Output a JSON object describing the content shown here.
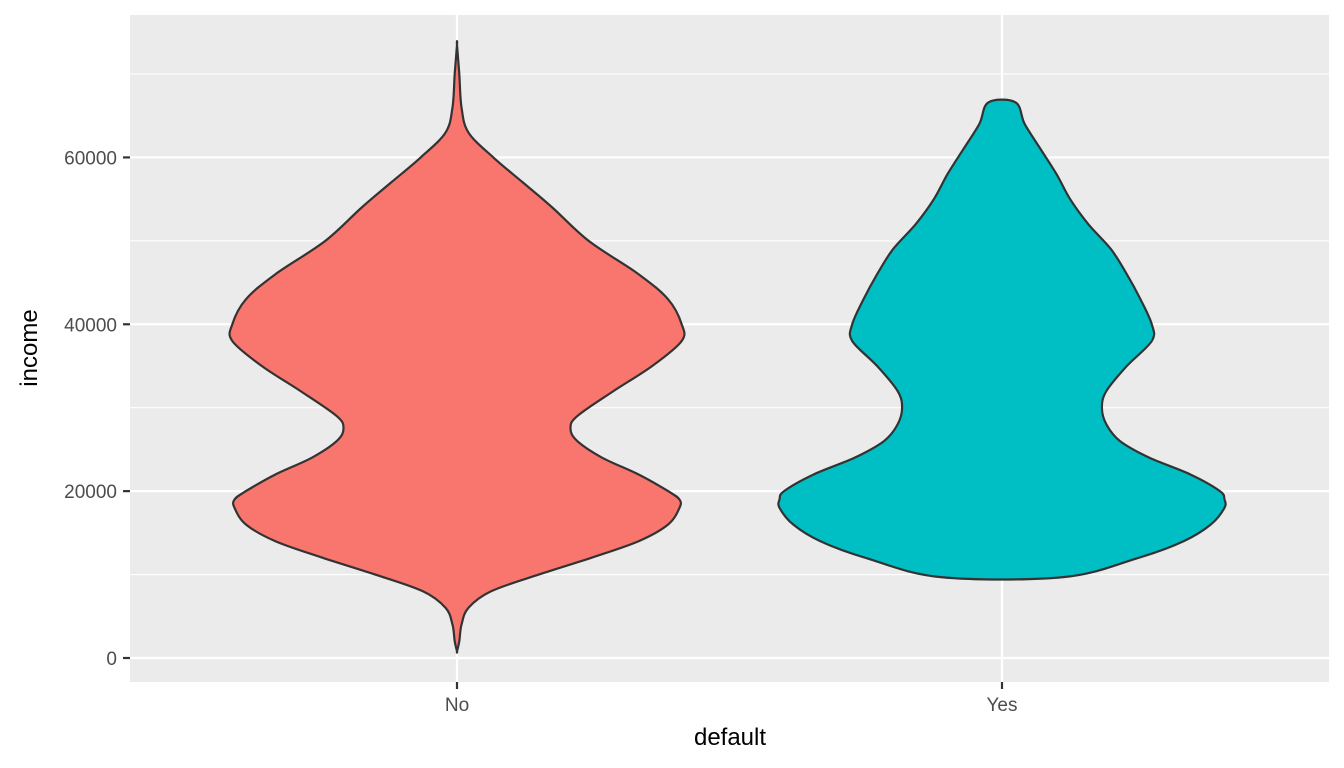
{
  "chart_data": {
    "type": "violin",
    "title": "",
    "xlabel": "default",
    "ylabel": "income",
    "categories": [
      "No",
      "Yes"
    ],
    "ylim": [
      -3000,
      78000
    ],
    "y_ticks": [
      0,
      20000,
      40000,
      60000
    ],
    "y_tick_labels": [
      "0",
      "20000",
      "40000",
      "60000"
    ],
    "grid": true,
    "legend": "none",
    "colors": {
      "No": "#F8766D",
      "Yes": "#00BFC4",
      "panel": "#EBEBEB",
      "grid": "#FFFFFF",
      "outline": "#333333"
    },
    "series": [
      {
        "category": "No",
        "fill": "#F8766D",
        "y_min": 800,
        "y_max": 73500,
        "density_profile": [
          [
            800,
            0.0
          ],
          [
            2000,
            0.01
          ],
          [
            4000,
            0.02
          ],
          [
            6000,
            0.05
          ],
          [
            8000,
            0.15
          ],
          [
            10000,
            0.36
          ],
          [
            12000,
            0.59
          ],
          [
            14000,
            0.8
          ],
          [
            16000,
            0.93
          ],
          [
            18000,
            0.98
          ],
          [
            19000,
            0.98
          ],
          [
            20000,
            0.93
          ],
          [
            22000,
            0.8
          ],
          [
            24000,
            0.64
          ],
          [
            26000,
            0.53
          ],
          [
            27500,
            0.5
          ],
          [
            29000,
            0.53
          ],
          [
            32000,
            0.69
          ],
          [
            35000,
            0.86
          ],
          [
            38000,
            0.99
          ],
          [
            40000,
            0.99
          ],
          [
            43000,
            0.93
          ],
          [
            46000,
            0.8
          ],
          [
            50000,
            0.58
          ],
          [
            54000,
            0.42
          ],
          [
            57000,
            0.29
          ],
          [
            60000,
            0.16
          ],
          [
            63000,
            0.05
          ],
          [
            66000,
            0.02
          ],
          [
            70000,
            0.01
          ],
          [
            73500,
            0.0
          ]
        ]
      },
      {
        "category": "Yes",
        "fill": "#00BFC4",
        "y_min": 9700,
        "y_max": 66600,
        "density_profile": [
          [
            9700,
            0.27
          ],
          [
            12000,
            0.6
          ],
          [
            14000,
            0.8
          ],
          [
            16000,
            0.92
          ],
          [
            18000,
            0.98
          ],
          [
            19000,
            0.98
          ],
          [
            20000,
            0.96
          ],
          [
            22000,
            0.83
          ],
          [
            24000,
            0.65
          ],
          [
            26000,
            0.52
          ],
          [
            28000,
            0.46
          ],
          [
            30000,
            0.44
          ],
          [
            32000,
            0.46
          ],
          [
            35000,
            0.55
          ],
          [
            38000,
            0.66
          ],
          [
            40000,
            0.66
          ],
          [
            43000,
            0.61
          ],
          [
            46000,
            0.55
          ],
          [
            49000,
            0.48
          ],
          [
            52000,
            0.38
          ],
          [
            55000,
            0.3
          ],
          [
            58000,
            0.24
          ],
          [
            61000,
            0.17
          ],
          [
            64000,
            0.1
          ],
          [
            66600,
            0.06
          ]
        ]
      }
    ]
  }
}
